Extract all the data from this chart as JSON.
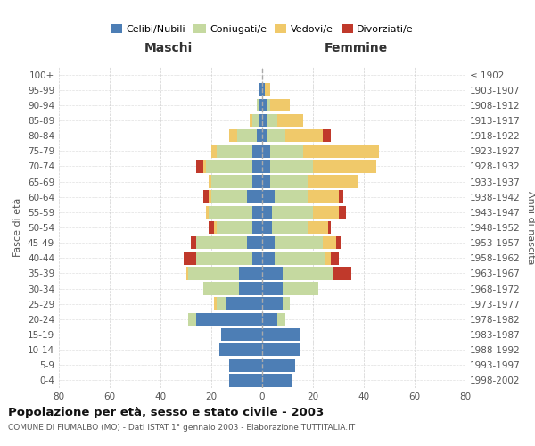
{
  "age_groups": [
    "0-4",
    "5-9",
    "10-14",
    "15-19",
    "20-24",
    "25-29",
    "30-34",
    "35-39",
    "40-44",
    "45-49",
    "50-54",
    "55-59",
    "60-64",
    "65-69",
    "70-74",
    "75-79",
    "80-84",
    "85-89",
    "90-94",
    "95-99",
    "100+"
  ],
  "birth_years": [
    "1998-2002",
    "1993-1997",
    "1988-1992",
    "1983-1987",
    "1978-1982",
    "1973-1977",
    "1968-1972",
    "1963-1967",
    "1958-1962",
    "1953-1957",
    "1948-1952",
    "1943-1947",
    "1938-1942",
    "1933-1937",
    "1928-1932",
    "1923-1927",
    "1918-1922",
    "1913-1917",
    "1908-1912",
    "1903-1907",
    "≤ 1902"
  ],
  "maschi": {
    "celibi": [
      13,
      13,
      17,
      16,
      26,
      14,
      9,
      9,
      4,
      6,
      4,
      4,
      6,
      4,
      4,
      4,
      2,
      1,
      1,
      1,
      0
    ],
    "coniugati": [
      0,
      0,
      0,
      0,
      3,
      4,
      14,
      20,
      22,
      20,
      14,
      17,
      14,
      16,
      18,
      14,
      8,
      3,
      1,
      0,
      0
    ],
    "vedovi": [
      0,
      0,
      0,
      0,
      0,
      1,
      0,
      1,
      0,
      0,
      1,
      1,
      1,
      1,
      1,
      2,
      3,
      1,
      0,
      0,
      0
    ],
    "divorziati": [
      0,
      0,
      0,
      0,
      0,
      0,
      0,
      0,
      5,
      2,
      2,
      0,
      2,
      0,
      3,
      0,
      0,
      0,
      0,
      0,
      0
    ]
  },
  "femmine": {
    "nubili": [
      12,
      13,
      15,
      15,
      6,
      8,
      8,
      8,
      5,
      5,
      4,
      4,
      5,
      3,
      3,
      3,
      2,
      2,
      2,
      1,
      0
    ],
    "coniugate": [
      0,
      0,
      0,
      0,
      3,
      3,
      14,
      20,
      20,
      19,
      14,
      16,
      13,
      15,
      17,
      13,
      7,
      4,
      1,
      0,
      0
    ],
    "vedove": [
      0,
      0,
      0,
      0,
      0,
      0,
      0,
      0,
      2,
      5,
      8,
      10,
      12,
      20,
      25,
      30,
      15,
      10,
      8,
      2,
      0
    ],
    "divorziate": [
      0,
      0,
      0,
      0,
      0,
      0,
      0,
      7,
      3,
      2,
      1,
      3,
      2,
      0,
      0,
      0,
      3,
      0,
      0,
      0,
      0
    ]
  },
  "colors": {
    "celibi_nubili": "#4d7eb5",
    "coniugati": "#c5d9a0",
    "vedovi": "#f0c96a",
    "divorziati": "#c0392b"
  },
  "title": "Popolazione per età, sesso e stato civile - 2003",
  "subtitle": "COMUNE DI FIUMALBO (MO) - Dati ISTAT 1° gennaio 2003 - Elaborazione TUTTITALIA.IT",
  "xlabel_left": "Maschi",
  "xlabel_right": "Femmine",
  "ylabel_left": "Fasce di età",
  "ylabel_right": "Anni di nascita",
  "xlim": 80,
  "bg_color": "#ffffff",
  "grid_color": "#cccccc"
}
